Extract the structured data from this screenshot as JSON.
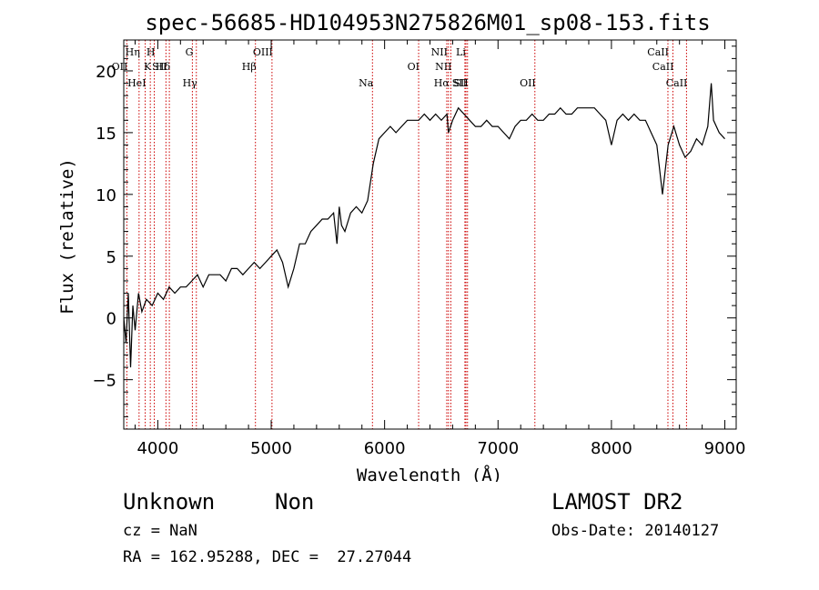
{
  "chart_data": {
    "type": "line",
    "title": "spec-56685-HD104953N275826M01_sp08-153.fits",
    "xlabel": "Wavelength (Å)",
    "ylabel": "Flux (relative)",
    "xlim": [
      3700,
      9100
    ],
    "ylim": [
      -9,
      22.5
    ],
    "xticks": [
      4000,
      5000,
      6000,
      7000,
      8000,
      9000
    ],
    "yticks": [
      -5,
      0,
      5,
      10,
      15,
      20
    ],
    "grid": false,
    "series": [
      {
        "x": [
          3700,
          3720,
          3740,
          3760,
          3780,
          3800,
          3830,
          3860,
          3900,
          3950,
          4000,
          4050,
          4100,
          4150,
          4200,
          4250,
          4300,
          4350,
          4400,
          4450,
          4500,
          4550,
          4600,
          4650,
          4700,
          4750,
          4800,
          4850,
          4900,
          4950,
          5000,
          5050,
          5100,
          5150,
          5200,
          5250,
          5300,
          5350,
          5400,
          5450,
          5500,
          5550,
          5580,
          5600,
          5620,
          5650,
          5700,
          5750,
          5800,
          5850,
          5900,
          5950,
          6000,
          6050,
          6100,
          6150,
          6200,
          6250,
          6300,
          6350,
          6400,
          6450,
          6500,
          6550,
          6563,
          6600,
          6650,
          6700,
          6750,
          6800,
          6850,
          6900,
          6950,
          7000,
          7050,
          7100,
          7150,
          7200,
          7250,
          7300,
          7350,
          7400,
          7450,
          7500,
          7550,
          7600,
          7650,
          7700,
          7750,
          7800,
          7850,
          7900,
          7950,
          8000,
          8050,
          8100,
          8150,
          8200,
          8250,
          8300,
          8350,
          8400,
          8450,
          8500,
          8550,
          8600,
          8650,
          8700,
          8750,
          8800,
          8850,
          8880,
          8900,
          8950,
          9000
        ],
        "y": [
          0,
          -2,
          2,
          -4,
          1,
          -1,
          2,
          0.5,
          1.5,
          1,
          2,
          1.5,
          2.5,
          2,
          2.5,
          2.5,
          3,
          3.5,
          2.5,
          3.5,
          3.5,
          3.5,
          3,
          4,
          4,
          3.5,
          4,
          4.5,
          4,
          4.5,
          5,
          5.5,
          4.5,
          2.5,
          4,
          6,
          6,
          7,
          7.5,
          8,
          8,
          8.5,
          6,
          9,
          7.5,
          7,
          8.5,
          9,
          8.5,
          9.5,
          12.5,
          14.5,
          15,
          15.5,
          15,
          15.5,
          16,
          16,
          16,
          16.5,
          16,
          16.5,
          16,
          16.5,
          15,
          16,
          17,
          16.5,
          16,
          15.5,
          15.5,
          16,
          15.5,
          15.5,
          15,
          14.5,
          15.5,
          16,
          16,
          16.5,
          16,
          16,
          16.5,
          16.5,
          17,
          16.5,
          16.5,
          17,
          17,
          17,
          17,
          16.5,
          16,
          14,
          16,
          16.5,
          16,
          16.5,
          16,
          16,
          15,
          14,
          10,
          14,
          15.5,
          14,
          13,
          13.5,
          14.5,
          14,
          15.5,
          19,
          16,
          15,
          14.5
        ]
      }
    ],
    "lines": [
      {
        "label": "Hη",
        "x": 3835
      },
      {
        "label": "H",
        "x": 3969
      },
      {
        "label": "K",
        "x": 3934
      },
      {
        "label": "Hδ",
        "x": 4102
      },
      {
        "label": "G",
        "x": 4305
      },
      {
        "label": "OIII",
        "x": 5007
      },
      {
        "label": "Hβ",
        "x": 4861
      },
      {
        "label": "Hγ",
        "x": 4340
      },
      {
        "label": "OII",
        "x": 3727
      },
      {
        "label": "HeI",
        "x": 3889
      },
      {
        "label": "SII",
        "x": 4072
      },
      {
        "label": "Na",
        "x": 5893
      },
      {
        "label": "OI",
        "x": 6300
      },
      {
        "label": "NII",
        "x": 6548
      },
      {
        "label": "Li",
        "x": 6708
      },
      {
        "label": "NII",
        "x": 6584
      },
      {
        "label": "SII",
        "x": 6717
      },
      {
        "label": "Hα",
        "x": 6563
      },
      {
        "label": "SII",
        "x": 6731
      },
      {
        "label": "OII",
        "x": 7325
      },
      {
        "label": "CaII",
        "x": 8498
      },
      {
        "label": "CaII",
        "x": 8542
      },
      {
        "label": "CaII",
        "x": 8662
      }
    ],
    "line_label_rows": [
      [
        "Hη",
        "H",
        "G",
        "OIII",
        "NII",
        "Li",
        "CaII"
      ],
      [
        "K",
        "Hδ",
        "Hβ",
        "OI",
        "NII",
        "SII",
        "OII",
        "CaII"
      ],
      [
        "OII",
        "HeI",
        "SII",
        "Hγ",
        "Na",
        "Hα",
        "SII",
        "CaII"
      ]
    ]
  },
  "info": {
    "class": "Unknown",
    "subclass": "Non",
    "survey": "LAMOST DR2",
    "cz": "cz = NaN",
    "obs_date": "Obs-Date: 20140127",
    "coords": "RA = 162.95288, DEC =  27.27044"
  },
  "colors": {
    "spectrum": "#000000",
    "line_markers": "#cc0000",
    "background": "#ffffff"
  }
}
